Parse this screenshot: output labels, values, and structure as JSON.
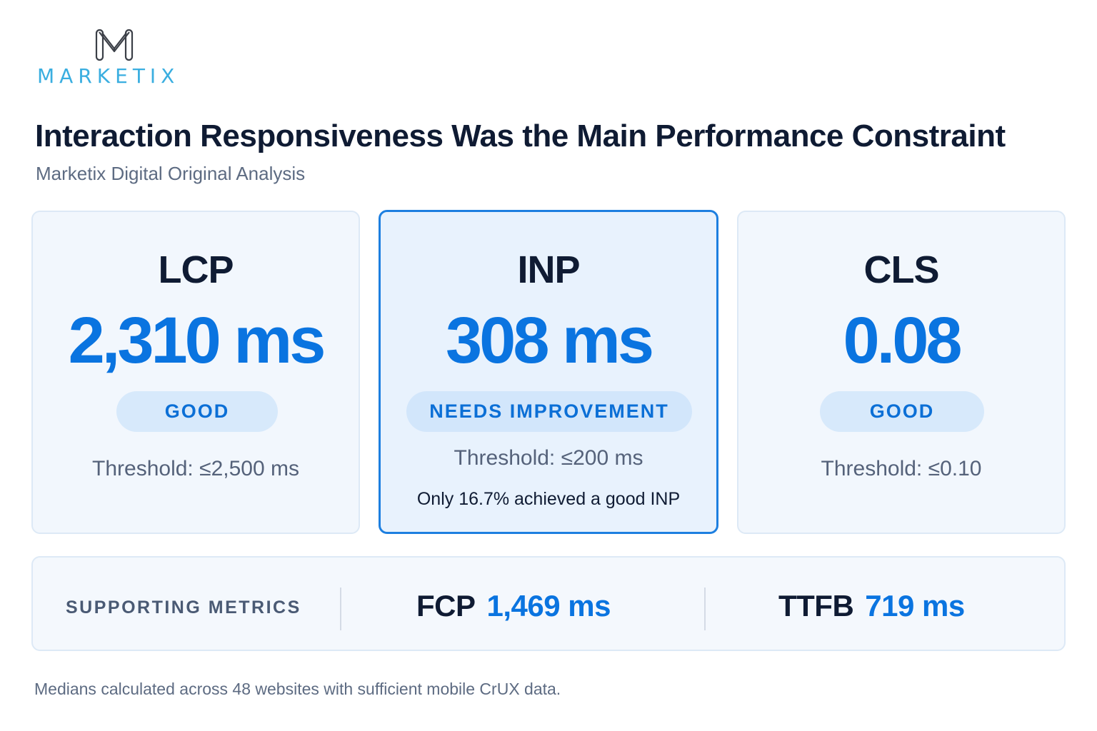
{
  "brand": {
    "name": "MARKETIX",
    "logo_icon": "m-monogram-icon",
    "accent": "#3aaee0"
  },
  "header": {
    "title": "Interaction Responsiveness Was the Main Performance Constraint",
    "subtitle": "Marketix Digital Original Analysis"
  },
  "metrics": [
    {
      "label": "LCP",
      "value": "2,310 ms",
      "status": "GOOD",
      "threshold": "Threshold: ≤2,500 ms",
      "highlighted": false
    },
    {
      "label": "INP",
      "value": "308 ms",
      "status": "NEEDS IMPROVEMENT",
      "threshold": "Threshold: ≤200 ms",
      "note": "Only 16.7% achieved a good INP",
      "highlighted": true
    },
    {
      "label": "CLS",
      "value": "0.08",
      "status": "GOOD",
      "threshold": "Threshold: ≤0.10",
      "highlighted": false
    }
  ],
  "supporting": {
    "label": "SUPPORTING METRICS",
    "items": [
      {
        "name": "FCP",
        "value": "1,469 ms"
      },
      {
        "name": "TTFB",
        "value": "719 ms"
      }
    ]
  },
  "footnote": "Medians calculated across 48 websites with sufficient mobile CrUX data.",
  "colors": {
    "value_blue": "#0a74e0",
    "title_dark": "#0f1b33",
    "highlight_border": "#1d7fe0",
    "badge_bg": "#d7e9fb"
  }
}
